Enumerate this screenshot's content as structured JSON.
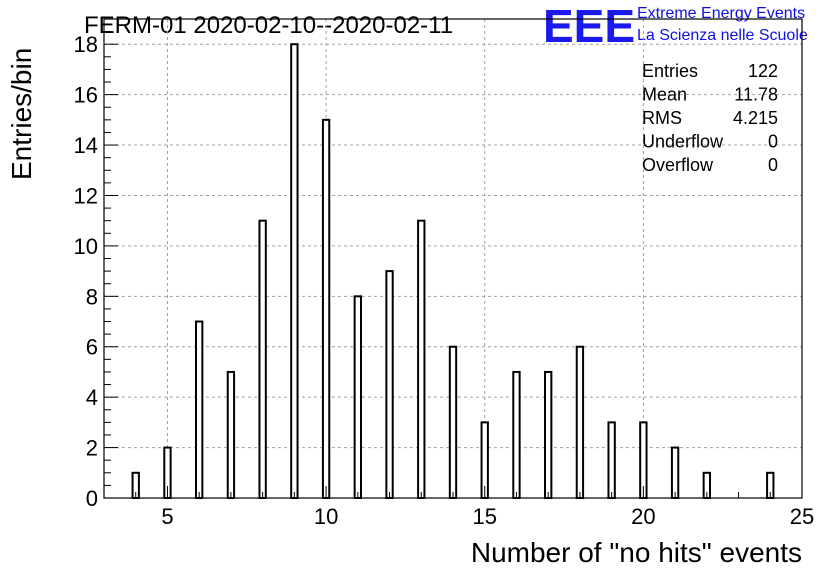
{
  "title": "FERM-01 2020-02-10--2020-02-11",
  "logo": {
    "mark": "EEE",
    "line1": "Extreme Energy Events",
    "line2": "La Scienza nelle Scuole",
    "color": "#1a1af0"
  },
  "stats": [
    {
      "label": "Entries",
      "value": "122"
    },
    {
      "label": "Mean",
      "value": "11.78"
    },
    {
      "label": "RMS",
      "value": "4.215"
    },
    {
      "label": "Underflow",
      "value": "0"
    },
    {
      "label": "Overflow",
      "value": "0"
    }
  ],
  "chart_data": {
    "type": "bar",
    "xlabel": "Number of \"no hits\" events",
    "ylabel": "Entries/bin",
    "xlim": [
      3,
      25
    ],
    "ylim": [
      0,
      19
    ],
    "xticks": [
      5,
      10,
      15,
      20,
      25
    ],
    "yticks": [
      0,
      2,
      4,
      6,
      8,
      10,
      12,
      14,
      16,
      18
    ],
    "grid": true,
    "x": [
      4,
      5,
      6,
      7,
      8,
      9,
      10,
      11,
      12,
      13,
      14,
      15,
      16,
      17,
      18,
      19,
      20,
      21,
      22,
      23,
      24
    ],
    "values": [
      1,
      2,
      7,
      5,
      11,
      18,
      15,
      8,
      9,
      11,
      6,
      3,
      5,
      5,
      6,
      3,
      3,
      2,
      1,
      0,
      1
    ]
  }
}
